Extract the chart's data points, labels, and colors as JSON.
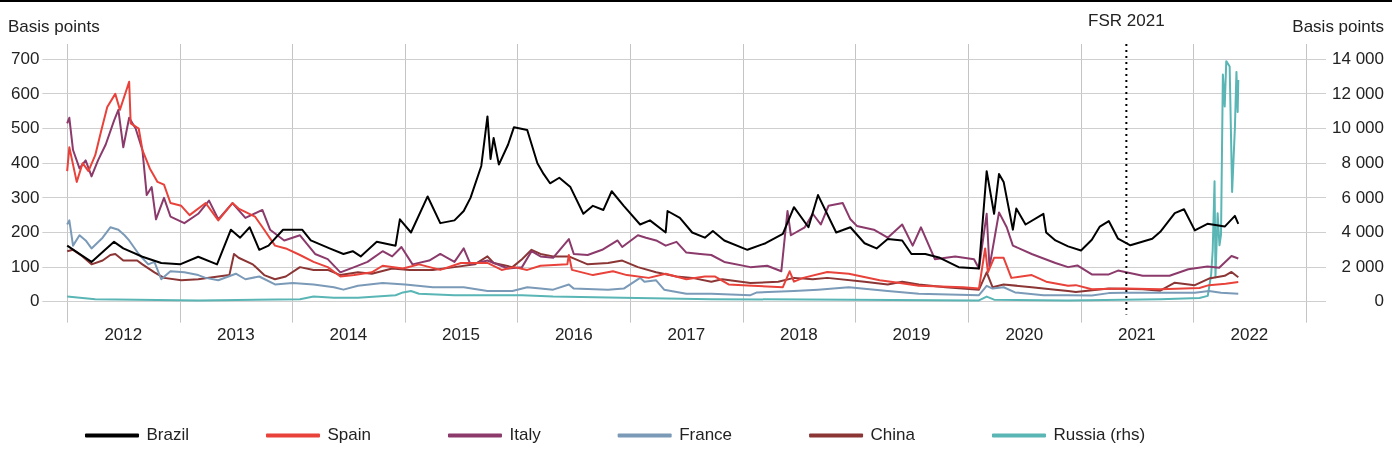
{
  "chart_data": {
    "type": "line",
    "ylabel": "Basis points",
    "y2label": "Basis points",
    "xlim": [
      "2011-11-01",
      "2023-02-15"
    ],
    "xticks": [
      {
        "value": "2012-01-01",
        "label": null
      },
      {
        "value": "2012-07-01",
        "label": "2012"
      },
      {
        "value": "2013-01-01",
        "label": null
      },
      {
        "value": "2013-07-01",
        "label": "2013"
      },
      {
        "value": "2014-01-01",
        "label": null
      },
      {
        "value": "2014-07-01",
        "label": "2014"
      },
      {
        "value": "2015-01-01",
        "label": null
      },
      {
        "value": "2015-07-01",
        "label": "2015"
      },
      {
        "value": "2016-01-01",
        "label": null
      },
      {
        "value": "2016-07-01",
        "label": "2016"
      },
      {
        "value": "2017-01-01",
        "label": null
      },
      {
        "value": "2017-07-01",
        "label": "2017"
      },
      {
        "value": "2018-01-01",
        "label": null
      },
      {
        "value": "2018-07-01",
        "label": "2018"
      },
      {
        "value": "2019-01-01",
        "label": null
      },
      {
        "value": "2019-07-01",
        "label": "2019"
      },
      {
        "value": "2020-01-01",
        "label": null
      },
      {
        "value": "2020-07-01",
        "label": "2020"
      },
      {
        "value": "2021-01-01",
        "label": null
      },
      {
        "value": "2021-07-01",
        "label": "2021"
      },
      {
        "value": "2022-01-01",
        "label": null
      },
      {
        "value": "2022-07-01",
        "label": "2022"
      },
      {
        "value": "2023-01-01",
        "label": null
      }
    ],
    "ylim": [
      -37,
      744
    ],
    "yticks": [
      0,
      100,
      200,
      300,
      400,
      500,
      600,
      700
    ],
    "y2lim": [
      -740,
      14880
    ],
    "y2ticks": [
      0,
      {
        "value": 2000,
        "label": "2 000"
      },
      {
        "value": 4000,
        "label": "4 000"
      },
      {
        "value": 6000,
        "label": "6 000"
      },
      {
        "value": 8000,
        "label": "8 000"
      },
      {
        "value": 10000,
        "label": "10 000"
      },
      {
        "value": 12000,
        "label": "12 000"
      },
      {
        "value": 14000,
        "label": "14 000"
      }
    ],
    "grid": true,
    "legend": "bottom left",
    "marker": "none",
    "line_style": "solid",
    "ref_lines": [
      {
        "axis": "x",
        "value": "2021-05-28",
        "label": "FSR 2021",
        "color": "#000000",
        "line_style": "dotted"
      }
    ],
    "series": [
      {
        "name": "Brazil",
        "color": "#000000",
        "x": [
          "2012-01-01",
          "2012-03-20",
          "2012-06-01",
          "2012-07-01",
          "2012-09-01",
          "2012-11-01",
          "2013-01-01",
          "2013-03-01",
          "2013-05-01",
          "2013-06-15",
          "2013-07-15",
          "2013-08-15",
          "2013-09-15",
          "2013-10-15",
          "2013-12-01",
          "2014-02-01",
          "2014-03-01",
          "2014-05-01",
          "2014-06-15",
          "2014-07-15",
          "2014-08-10",
          "2014-10-01",
          "2014-12-01",
          "2014-12-15",
          "2015-01-20",
          "2015-03-15",
          "2015-04-25",
          "2015-06-10",
          "2015-07-10",
          "2015-08-01",
          "2015-09-05",
          "2015-09-25",
          "2015-10-05",
          "2015-10-15",
          "2015-11-01",
          "2015-12-01",
          "2015-12-20",
          "2016-02-01",
          "2016-03-05",
          "2016-03-25",
          "2016-04-15",
          "2016-05-15",
          "2016-06-20",
          "2016-08-01",
          "2016-09-01",
          "2016-10-05",
          "2016-11-01",
          "2016-12-10",
          "2017-02-01",
          "2017-03-05",
          "2017-04-25",
          "2017-05-01",
          "2017-06-10",
          "2017-07-20",
          "2017-08-30",
          "2017-09-25",
          "2017-11-01",
          "2018-01-15",
          "2018-03-15",
          "2018-05-10",
          "2018-06-15",
          "2018-08-01",
          "2018-09-01",
          "2018-10-30",
          "2018-12-15",
          "2019-01-30",
          "2019-03-10",
          "2019-04-15",
          "2019-06-01",
          "2019-07-01",
          "2019-08-15",
          "2019-10-01",
          "2019-12-01",
          "2020-02-05",
          "2020-03-01",
          "2020-03-25",
          "2020-04-10",
          "2020-04-25",
          "2020-05-25",
          "2020-06-05",
          "2020-07-05",
          "2020-09-01",
          "2020-09-10",
          "2020-10-10",
          "2020-11-20",
          "2021-01-01",
          "2021-02-05",
          "2021-03-03",
          "2021-04-01",
          "2021-05-01",
          "2021-06-10",
          "2021-08-20",
          "2021-09-15",
          "2021-11-01",
          "2021-12-01",
          "2022-01-05",
          "2022-02-15",
          "2022-04-12",
          "2022-05-15",
          "2022-05-26"
        ],
        "values": [
          162,
          115,
          173,
          154,
          130,
          112,
          108,
          130,
          108,
          208,
          185,
          215,
          150,
          162,
          208,
          208,
          177,
          154,
          138,
          146,
          131,
          173,
          162,
          238,
          200,
          304,
          227,
          235,
          262,
          300,
          392,
          535,
          412,
          473,
          396,
          454,
          504,
          496,
          400,
          369,
          342,
          358,
          331,
          254,
          277,
          265,
          319,
          277,
          223,
          235,
          200,
          262,
          242,
          200,
          185,
          204,
          177,
          150,
          169,
          196,
          273,
          215,
          308,
          200,
          215,
          169,
          154,
          181,
          177,
          138,
          138,
          127,
          100,
          96,
          377,
          254,
          369,
          346,
          208,
          269,
          223,
          254,
          200,
          177,
          160,
          148,
          179,
          217,
          233,
          182,
          163,
          182,
          202,
          256,
          267,
          206,
          225,
          217,
          248,
          225
        ]
      },
      {
        "name": "Spain",
        "color": "#e8423a",
        "x": [
          "2012-01-01",
          "2012-01-08",
          "2012-02-01",
          "2012-02-20",
          "2012-03-10",
          "2012-04-01",
          "2012-04-20",
          "2012-05-10",
          "2012-06-05",
          "2012-06-20",
          "2012-07-20",
          "2012-07-25",
          "2012-08-20",
          "2012-09-01",
          "2012-09-25",
          "2012-10-20",
          "2012-11-10",
          "2012-12-01",
          "2013-01-05",
          "2013-02-01",
          "2013-03-25",
          "2013-05-05",
          "2013-06-20",
          "2013-07-10",
          "2013-09-01",
          "2013-10-01",
          "2013-11-05",
          "2013-12-10",
          "2014-01-25",
          "2014-03-10",
          "2014-04-25",
          "2014-06-05",
          "2014-07-20",
          "2014-09-15",
          "2014-10-20",
          "2014-12-25",
          "2015-02-15",
          "2015-04-25",
          "2015-07-01",
          "2015-09-25",
          "2015-11-10",
          "2015-12-20",
          "2016-02-01",
          "2016-03-15",
          "2016-06-10",
          "2016-06-15",
          "2016-06-25",
          "2016-09-01",
          "2016-11-05",
          "2016-12-20",
          "2017-03-01",
          "2017-04-25",
          "2017-07-01",
          "2017-08-30",
          "2017-10-01",
          "2017-11-15",
          "2018-02-01",
          "2018-05-10",
          "2018-06-01",
          "2018-06-15",
          "2018-07-15",
          "2018-10-01",
          "2018-12-10",
          "2019-03-20",
          "2019-05-25",
          "2019-07-25",
          "2019-12-15",
          "2020-02-05",
          "2020-02-25",
          "2020-03-05",
          "2020-03-25",
          "2020-04-25",
          "2020-05-20",
          "2020-07-25",
          "2020-09-10",
          "2020-11-20",
          "2020-12-15",
          "2021-02-05",
          "2021-05-25",
          "2021-09-15",
          "2022-01-20",
          "2022-02-20",
          "2022-04-15",
          "2022-05-26"
        ],
        "values": [
          377,
          446,
          346,
          400,
          377,
          423,
          492,
          562,
          600,
          554,
          635,
          515,
          500,
          438,
          385,
          346,
          338,
          285,
          277,
          250,
          285,
          235,
          285,
          269,
          246,
          208,
          162,
          154,
          135,
          115,
          100,
          73,
          77,
          85,
          104,
          96,
          108,
          92,
          112,
          112,
          92,
          100,
          92,
          104,
          108,
          135,
          92,
          77,
          88,
          77,
          69,
          81,
          65,
          73,
          73,
          50,
          46,
          42,
          88,
          58,
          69,
          86,
          81,
          62,
          54,
          46,
          42,
          38,
          154,
          85,
          127,
          127,
          69,
          77,
          58,
          46,
          48,
          36,
          38,
          36,
          40,
          48,
          52,
          57
        ]
      },
      {
        "name": "Italy",
        "color": "#8b3a6b",
        "x": [
          "2012-01-01",
          "2012-01-08",
          "2012-01-20",
          "2012-02-10",
          "2012-03-01",
          "2012-03-20",
          "2012-04-10",
          "2012-05-05",
          "2012-06-01",
          "2012-06-15",
          "2012-07-01",
          "2012-07-20",
          "2012-08-10",
          "2012-09-01",
          "2012-09-15",
          "2012-10-01",
          "2012-10-15",
          "2012-11-10",
          "2012-12-01",
          "2013-01-15",
          "2013-03-01",
          "2013-04-05",
          "2013-05-05",
          "2013-06-20",
          "2013-08-01",
          "2013-09-25",
          "2013-10-20",
          "2013-12-05",
          "2014-01-25",
          "2014-03-15",
          "2014-04-25",
          "2014-06-05",
          "2014-07-20",
          "2014-09-01",
          "2014-10-20",
          "2014-11-20",
          "2014-12-20",
          "2015-01-25",
          "2015-03-20",
          "2015-04-25",
          "2015-06-10",
          "2015-07-10",
          "2015-08-01",
          "2015-09-25",
          "2015-12-01",
          "2016-01-15",
          "2016-02-15",
          "2016-03-15",
          "2016-04-25",
          "2016-06-15",
          "2016-07-01",
          "2016-08-15",
          "2016-10-01",
          "2016-11-20",
          "2016-12-05",
          "2017-01-25",
          "2017-02-20",
          "2017-03-25",
          "2017-04-25",
          "2017-05-30",
          "2017-07-01",
          "2017-08-15",
          "2017-09-20",
          "2017-11-01",
          "2018-01-25",
          "2018-03-20",
          "2018-05-05",
          "2018-05-25",
          "2018-06-05",
          "2018-07-20",
          "2018-08-15",
          "2018-09-10",
          "2018-10-05",
          "2018-11-20",
          "2018-12-15",
          "2019-01-05",
          "2019-03-01",
          "2019-04-15",
          "2019-06-01",
          "2019-07-05",
          "2019-08-01",
          "2019-09-15",
          "2019-11-20",
          "2020-01-20",
          "2020-02-05",
          "2020-03-01",
          "2020-03-10",
          "2020-04-10",
          "2020-05-05",
          "2020-05-25",
          "2020-07-25",
          "2020-10-10",
          "2020-11-20",
          "2020-12-20",
          "2021-02-05",
          "2021-04-01",
          "2021-05-01",
          "2021-07-20",
          "2021-10-15",
          "2021-12-15",
          "2022-02-15",
          "2022-03-25",
          "2022-05-04",
          "2022-05-26"
        ],
        "values": [
          515,
          531,
          438,
          385,
          408,
          362,
          408,
          454,
          523,
          554,
          446,
          531,
          500,
          438,
          308,
          331,
          238,
          300,
          246,
          227,
          254,
          292,
          238,
          285,
          242,
          265,
          208,
          177,
          192,
          138,
          123,
          85,
          100,
          115,
          146,
          131,
          158,
          108,
          119,
          138,
          115,
          154,
          108,
          119,
          96,
          100,
          146,
          131,
          127,
          181,
          138,
          135,
          150,
          177,
          158,
          192,
          185,
          177,
          162,
          173,
          142,
          138,
          135,
          115,
          100,
          104,
          88,
          262,
          192,
          215,
          254,
          223,
          277,
          285,
          238,
          219,
          208,
          185,
          223,
          162,
          215,
          123,
          131,
          123,
          96,
          254,
          100,
          258,
          215,
          162,
          138,
          112,
          100,
          105,
          79,
          79,
          90,
          75,
          75,
          94,
          102,
          98,
          132,
          125
        ]
      },
      {
        "name": "France",
        "color": "#7a9ab8",
        "x": [
          "2012-01-01",
          "2012-01-08",
          "2012-01-20",
          "2012-02-10",
          "2012-03-01",
          "2012-03-20",
          "2012-04-25",
          "2012-05-20",
          "2012-06-15",
          "2012-07-05",
          "2012-07-20",
          "2012-08-20",
          "2012-09-20",
          "2012-10-10",
          "2012-11-01",
          "2012-12-01",
          "2013-01-15",
          "2013-03-01",
          "2013-03-25",
          "2013-05-05",
          "2013-07-01",
          "2013-08-01",
          "2013-09-15",
          "2013-11-05",
          "2014-01-01",
          "2014-03-10",
          "2014-05-15",
          "2014-06-15",
          "2014-08-01",
          "2014-10-20",
          "2015-01-01",
          "2015-04-01",
          "2015-07-10",
          "2015-09-25",
          "2015-12-15",
          "2016-02-01",
          "2016-03-15",
          "2016-04-25",
          "2016-06-15",
          "2016-07-01",
          "2016-10-20",
          "2016-12-10",
          "2017-02-01",
          "2017-02-15",
          "2017-03-25",
          "2017-04-20",
          "2017-07-01",
          "2017-09-20",
          "2018-01-25",
          "2018-02-15",
          "2018-06-15",
          "2018-09-01",
          "2018-12-10",
          "2019-04-15",
          "2019-07-25",
          "2020-02-05",
          "2020-03-01",
          "2020-03-20",
          "2020-04-25",
          "2020-06-01",
          "2020-09-01",
          "2020-11-20",
          "2021-02-05",
          "2021-04-01",
          "2021-05-25",
          "2021-09-15",
          "2022-01-05",
          "2022-02-20",
          "2022-03-31",
          "2022-05-26"
        ],
        "values": [
          223,
          235,
          162,
          192,
          177,
          154,
          185,
          215,
          208,
          192,
          177,
          138,
          108,
          115,
          65,
          88,
          85,
          77,
          69,
          62,
          81,
          65,
          73,
          50,
          54,
          50,
          42,
          35,
          46,
          54,
          50,
          42,
          42,
          31,
          31,
          42,
          38,
          35,
          50,
          38,
          35,
          38,
          69,
          58,
          62,
          35,
          23,
          23,
          19,
          27,
          31,
          35,
          42,
          31,
          23,
          19,
          46,
          38,
          42,
          27,
          19,
          19,
          18,
          25,
          26,
          26,
          26,
          31,
          26,
          23
        ]
      },
      {
        "name": "China",
        "color": "#8b3535",
        "x": [
          "2012-01-01",
          "2012-01-20",
          "2012-02-20",
          "2012-03-20",
          "2012-04-25",
          "2012-05-20",
          "2012-06-05",
          "2012-07-01",
          "2012-08-15",
          "2012-09-01",
          "2012-10-10",
          "2012-11-10",
          "2013-01-05",
          "2013-03-01",
          "2013-05-05",
          "2013-06-10",
          "2013-06-25",
          "2013-07-10",
          "2013-08-25",
          "2013-10-01",
          "2013-11-05",
          "2013-12-10",
          "2014-01-25",
          "2014-03-10",
          "2014-04-25",
          "2014-06-05",
          "2014-08-01",
          "2014-09-15",
          "2014-11-20",
          "2015-01-15",
          "2015-04-01",
          "2015-06-10",
          "2015-08-15",
          "2015-09-25",
          "2015-10-15",
          "2015-12-15",
          "2016-01-15",
          "2016-02-15",
          "2016-03-15",
          "2016-04-25",
          "2016-06-15",
          "2016-08-15",
          "2016-10-20",
          "2016-12-05",
          "2017-01-25",
          "2017-03-25",
          "2017-05-30",
          "2017-07-20",
          "2017-09-20",
          "2017-10-25",
          "2018-01-25",
          "2018-04-25",
          "2018-06-15",
          "2018-08-15",
          "2018-10-01",
          "2019-01-30",
          "2019-04-15",
          "2019-06-01",
          "2019-07-25",
          "2019-10-20",
          "2020-02-05",
          "2020-03-01",
          "2020-03-20",
          "2020-04-25",
          "2020-07-25",
          "2020-10-10",
          "2020-11-20",
          "2020-12-15",
          "2021-04-01",
          "2021-07-20",
          "2021-09-15",
          "2021-11-01",
          "2022-01-05",
          "2022-02-20",
          "2022-04-12",
          "2022-05-04",
          "2022-05-26"
        ],
        "values": [
          146,
          150,
          131,
          108,
          119,
          135,
          138,
          119,
          119,
          108,
          85,
          69,
          62,
          65,
          73,
          77,
          138,
          127,
          108,
          77,
          65,
          73,
          100,
          92,
          92,
          77,
          85,
          81,
          96,
          92,
          92,
          100,
          108,
          131,
          112,
          100,
          123,
          150,
          138,
          131,
          131,
          108,
          112,
          119,
          100,
          85,
          73,
          69,
          58,
          65,
          54,
          58,
          69,
          65,
          69,
          58,
          50,
          58,
          50,
          42,
          35,
          85,
          42,
          50,
          42,
          35,
          31,
          28,
          38,
          36,
          32,
          55,
          48,
          67,
          75,
          86,
          71
        ]
      },
      {
        "name": "Russia (rhs)",
        "color": "#5ab5b5",
        "axis": "y2",
        "x": [
          "2012-01-01",
          "2012-04-01",
          "2013-03-01",
          "2014-01-25",
          "2014-03-10",
          "2014-05-15",
          "2014-08-01",
          "2014-12-01",
          "2014-12-25",
          "2015-01-20",
          "2015-02-15",
          "2015-06-10",
          "2016-01-15",
          "2016-04-25",
          "2016-12-05",
          "2017-09-20",
          "2018-12-15",
          "2020-02-05",
          "2020-03-01",
          "2020-03-25",
          "2020-11-20",
          "2021-09-15",
          "2022-01-20",
          "2022-02-16",
          "2022-02-27",
          "2022-03-04",
          "2022-03-10",
          "2022-03-13",
          "2022-03-20",
          "2022-03-26",
          "2022-03-31",
          "2022-04-06",
          "2022-04-12",
          "2022-04-17",
          "2022-04-28",
          "2022-05-06",
          "2022-05-15",
          "2022-05-20",
          "2022-05-24",
          "2022-05-26"
        ],
        "values": [
          300,
          150,
          80,
          150,
          300,
          230,
          230,
          380,
          540,
          620,
          460,
          380,
          380,
          300,
          230,
          150,
          120,
          80,
          300,
          120,
          80,
          150,
          220,
          340,
          1570,
          2960,
          6960,
          1420,
          5110,
          3260,
          3880,
          13120,
          11270,
          13890,
          13580,
          6340,
          10040,
          13270,
          10960,
          12810
        ]
      }
    ]
  }
}
